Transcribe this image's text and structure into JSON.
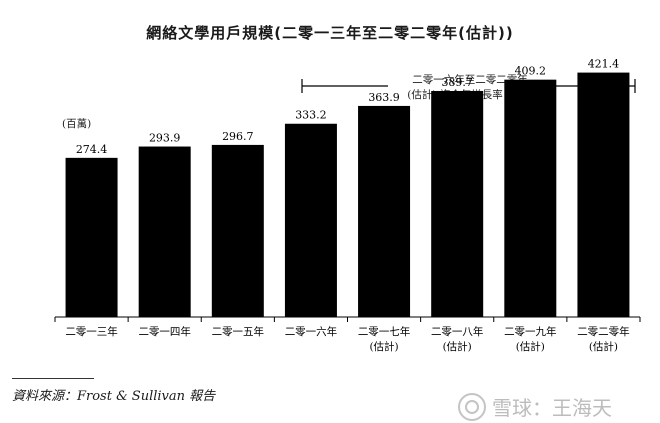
{
  "chart_data": {
    "type": "bar",
    "title": "網絡文學用戶規模(二零一三年至二零二零年(估計))",
    "unit_label": "(百萬)",
    "annotation": {
      "line1": "二零一六年至二零二零年",
      "line2": "(估計) 複合年增長率 6.0%"
    },
    "categories": [
      "二零一三年",
      "二零一四年",
      "二零一五年",
      "二零一六年",
      "二零一七年\n(估計)",
      "二零一八年\n(估計)",
      "二零一九年\n(估計)",
      "二零二零年\n(估計)"
    ],
    "values": [
      274.4,
      293.9,
      296.7,
      333.2,
      363.9,
      389.7,
      409.2,
      421.4
    ],
    "value_labels": [
      "274.4",
      "293.9",
      "296.7",
      "333.2",
      "363.9",
      "389.7",
      "409.2",
      "421.4"
    ],
    "ylim": [
      0,
      450
    ],
    "grid": false,
    "bar_color": "#000000"
  },
  "source": "資料來源：Frost & Sullivan 報告",
  "watermark": "雪球：王海天"
}
